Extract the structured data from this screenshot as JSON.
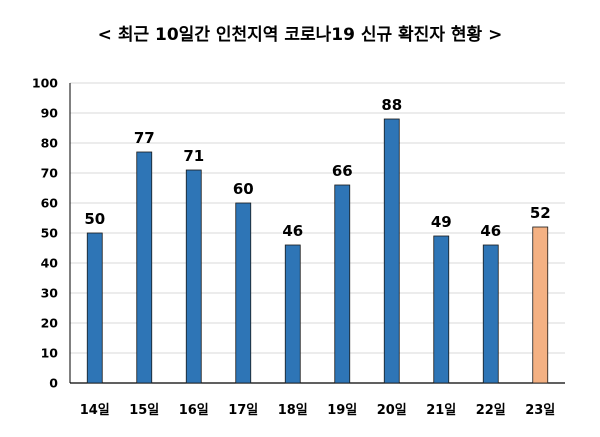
{
  "chart_data": {
    "type": "bar",
    "title": "< 최근 10일간 인천지역 코로나19 신규 확진자 현황 >",
    "categories": [
      "14일",
      "15일",
      "16일",
      "17일",
      "18일",
      "19일",
      "20일",
      "21일",
      "22일",
      "23일"
    ],
    "values": [
      50,
      77,
      71,
      60,
      46,
      66,
      88,
      49,
      46,
      52
    ],
    "ylim": [
      0,
      100
    ],
    "yticks": [
      0,
      10,
      20,
      30,
      40,
      50,
      60,
      70,
      80,
      90,
      100
    ],
    "grid": true,
    "legend": "none",
    "colors": {
      "bar": "#2e75b6",
      "highlight": "#f4b183",
      "bar_edge": "#1a1a1a",
      "grid": "#d9d9d9",
      "axis": "#000000"
    },
    "highlight_index": 9
  }
}
